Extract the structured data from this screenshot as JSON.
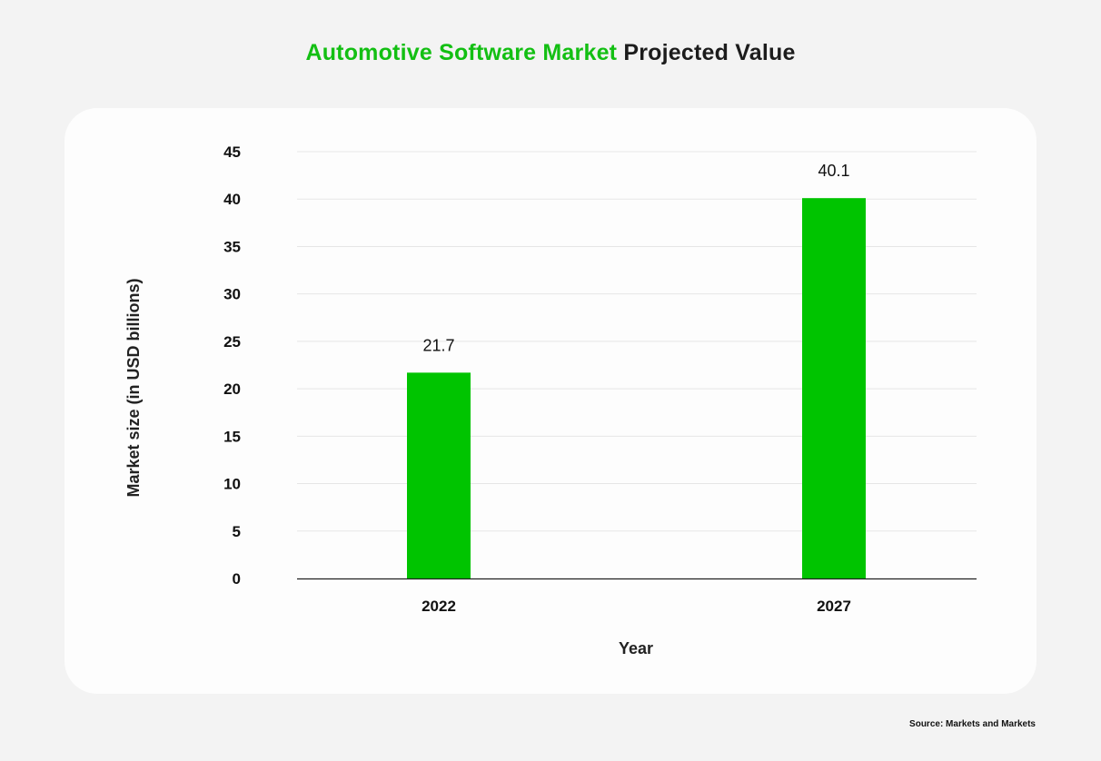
{
  "title": {
    "highlight": "Automotive Software Market",
    "rest": "Projected Value",
    "highlight_color": "#13bf13"
  },
  "source": "Source: Markets and Markets",
  "chart_data": {
    "type": "bar",
    "title": "Automotive Software Market Projected Value",
    "categories": [
      "2022",
      "2027"
    ],
    "values": [
      21.7,
      40.1
    ],
    "data_labels": [
      "21.7",
      "40.1"
    ],
    "xlabel": "Year",
    "ylabel": "Market size (in USD billions)",
    "ylim": [
      0,
      45
    ],
    "yticks": [
      0,
      5,
      10,
      15,
      20,
      25,
      30,
      35,
      40,
      45
    ],
    "grid": true,
    "legend": "none",
    "bar_color": "#00c400"
  }
}
